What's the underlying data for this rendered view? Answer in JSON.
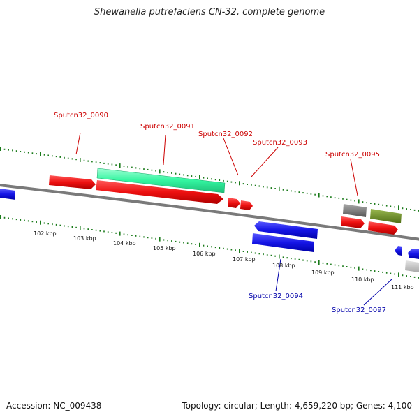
{
  "title": "Shewanella putrefaciens CN-32, complete genome",
  "footer": {
    "accession": "Accession: NC_009438",
    "summary": "Topology: circular; Length: 4,659,220 bp; Genes: 4,100"
  },
  "scale_labels": [
    "102 kbp",
    "103 kbp",
    "104 kbp",
    "105 kbp",
    "106 kbp",
    "107 kbp",
    "108 kbp",
    "109 kbp",
    "110 kbp",
    "111 kbp"
  ],
  "gene_labels": [
    "Sputcn32_0090",
    "Sputcn32_0091",
    "Sputcn32_0092",
    "Sputcn32_0093",
    "Sputcn32_0095",
    "Sputcn32_0094",
    "Sputcn32_0097"
  ],
  "colors": {
    "forward_cds": "#ee1111",
    "reverse_cds": "#1515e6",
    "rna": "#33f5a0",
    "olive": "#6b8e23",
    "gray": "#777777",
    "light_gray": "#c8c8c8",
    "tick": "#1a7a1a",
    "label_forward": "#cc0000",
    "label_reverse": "#0000aa",
    "backbone": "#808080"
  }
}
